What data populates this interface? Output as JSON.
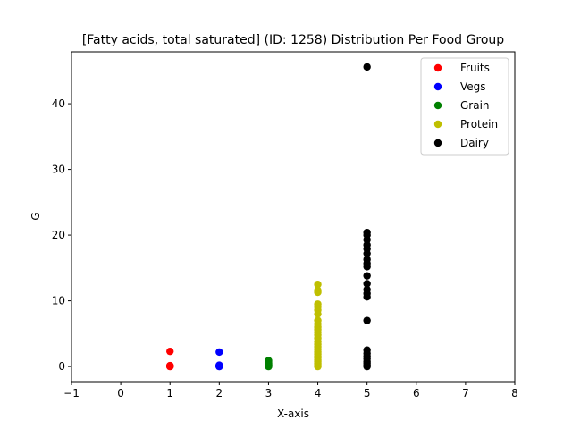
{
  "chart_data": {
    "type": "scatter",
    "title": "[Fatty acids, total saturated] (ID: 1258) Distribution Per Food Group",
    "xlabel": "X-axis",
    "ylabel": "G",
    "xlim": [
      -1,
      8
    ],
    "ylim": [
      -2.3,
      47.9
    ],
    "xticks": [
      -1,
      0,
      1,
      2,
      3,
      4,
      5,
      6,
      7,
      8
    ],
    "yticks": [
      0,
      10,
      20,
      30,
      40
    ],
    "grid": false,
    "legend_position": "top-right",
    "series": [
      {
        "name": "Fruits",
        "color": "#ff0000",
        "points": [
          [
            1,
            0
          ],
          [
            1,
            0.02
          ],
          [
            1,
            0.05
          ],
          [
            1,
            0.08
          ],
          [
            1,
            0.1
          ],
          [
            1,
            0.14
          ],
          [
            1,
            2.3
          ]
        ]
      },
      {
        "name": "Vegs",
        "color": "#0000ff",
        "points": [
          [
            2,
            0
          ],
          [
            2,
            0.02
          ],
          [
            2,
            0.05
          ],
          [
            2,
            0.1
          ],
          [
            2,
            0.15
          ],
          [
            2,
            0.2
          ],
          [
            2,
            2.2
          ]
        ]
      },
      {
        "name": "Grain",
        "color": "#008000",
        "points": [
          [
            3,
            0
          ],
          [
            3,
            0.05
          ],
          [
            3,
            0.1
          ],
          [
            3,
            0.15
          ],
          [
            3,
            0.2
          ],
          [
            3,
            0.3
          ],
          [
            3,
            0.4
          ],
          [
            3,
            0.5
          ],
          [
            3,
            0.7
          ],
          [
            3,
            0.9
          ]
        ]
      },
      {
        "name": "Protein",
        "color": "#bfbf00",
        "points": [
          [
            4,
            0
          ],
          [
            4,
            0.1
          ],
          [
            4,
            0.3
          ],
          [
            4,
            0.5
          ],
          [
            4,
            0.8
          ],
          [
            4,
            1.0
          ],
          [
            4,
            1.3
          ],
          [
            4,
            1.6
          ],
          [
            4,
            1.9
          ],
          [
            4,
            2.2
          ],
          [
            4,
            2.6
          ],
          [
            4,
            3.0
          ],
          [
            4,
            3.4
          ],
          [
            4,
            3.8
          ],
          [
            4,
            4.3
          ],
          [
            4,
            4.8
          ],
          [
            4,
            5.2
          ],
          [
            4,
            5.6
          ],
          [
            4,
            6.0
          ],
          [
            4,
            6.5
          ],
          [
            4,
            7.0
          ],
          [
            4,
            8.0
          ],
          [
            4,
            8.6
          ],
          [
            4,
            9.1
          ],
          [
            4,
            9.5
          ],
          [
            4,
            11.3
          ],
          [
            4,
            11.6
          ],
          [
            4,
            12.5
          ]
        ]
      },
      {
        "name": "Dairy",
        "color": "#000000",
        "points": [
          [
            5,
            0
          ],
          [
            5,
            0.2
          ],
          [
            5,
            0.5
          ],
          [
            5,
            0.8
          ],
          [
            5,
            1.2
          ],
          [
            5,
            1.6
          ],
          [
            5,
            2.0
          ],
          [
            5,
            2.5
          ],
          [
            5,
            7.0
          ],
          [
            5,
            10.6
          ],
          [
            5,
            11.1
          ],
          [
            5,
            11.7
          ],
          [
            5,
            12.6
          ],
          [
            5,
            13.8
          ],
          [
            5,
            15.2
          ],
          [
            5,
            15.7
          ],
          [
            5,
            16.3
          ],
          [
            5,
            17.2
          ],
          [
            5,
            17.9
          ],
          [
            5,
            18.5
          ],
          [
            5,
            19.3
          ],
          [
            5,
            20.0
          ],
          [
            5,
            20.4
          ],
          [
            5,
            45.6
          ]
        ]
      }
    ]
  }
}
